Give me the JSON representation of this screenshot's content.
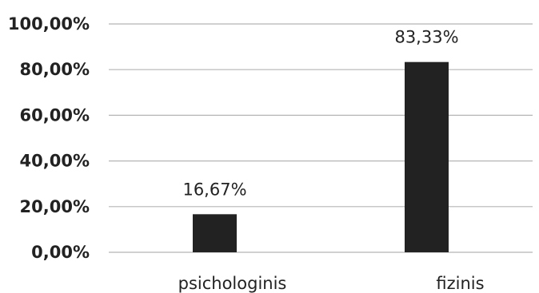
{
  "chart_data": {
    "type": "bar",
    "categories": [
      "psichologinis",
      "fizinis"
    ],
    "values": [
      16.67,
      83.33
    ],
    "data_labels": [
      "16,67%",
      "83,33%"
    ],
    "y_tick_labels": [
      "0,00%",
      "20,00%",
      "40,00%",
      "60,00%",
      "80,00%",
      "100,00%"
    ],
    "ylim": [
      0,
      100
    ],
    "grid": true,
    "bar_color": "#222222",
    "title": "",
    "xlabel": "",
    "ylabel": ""
  }
}
